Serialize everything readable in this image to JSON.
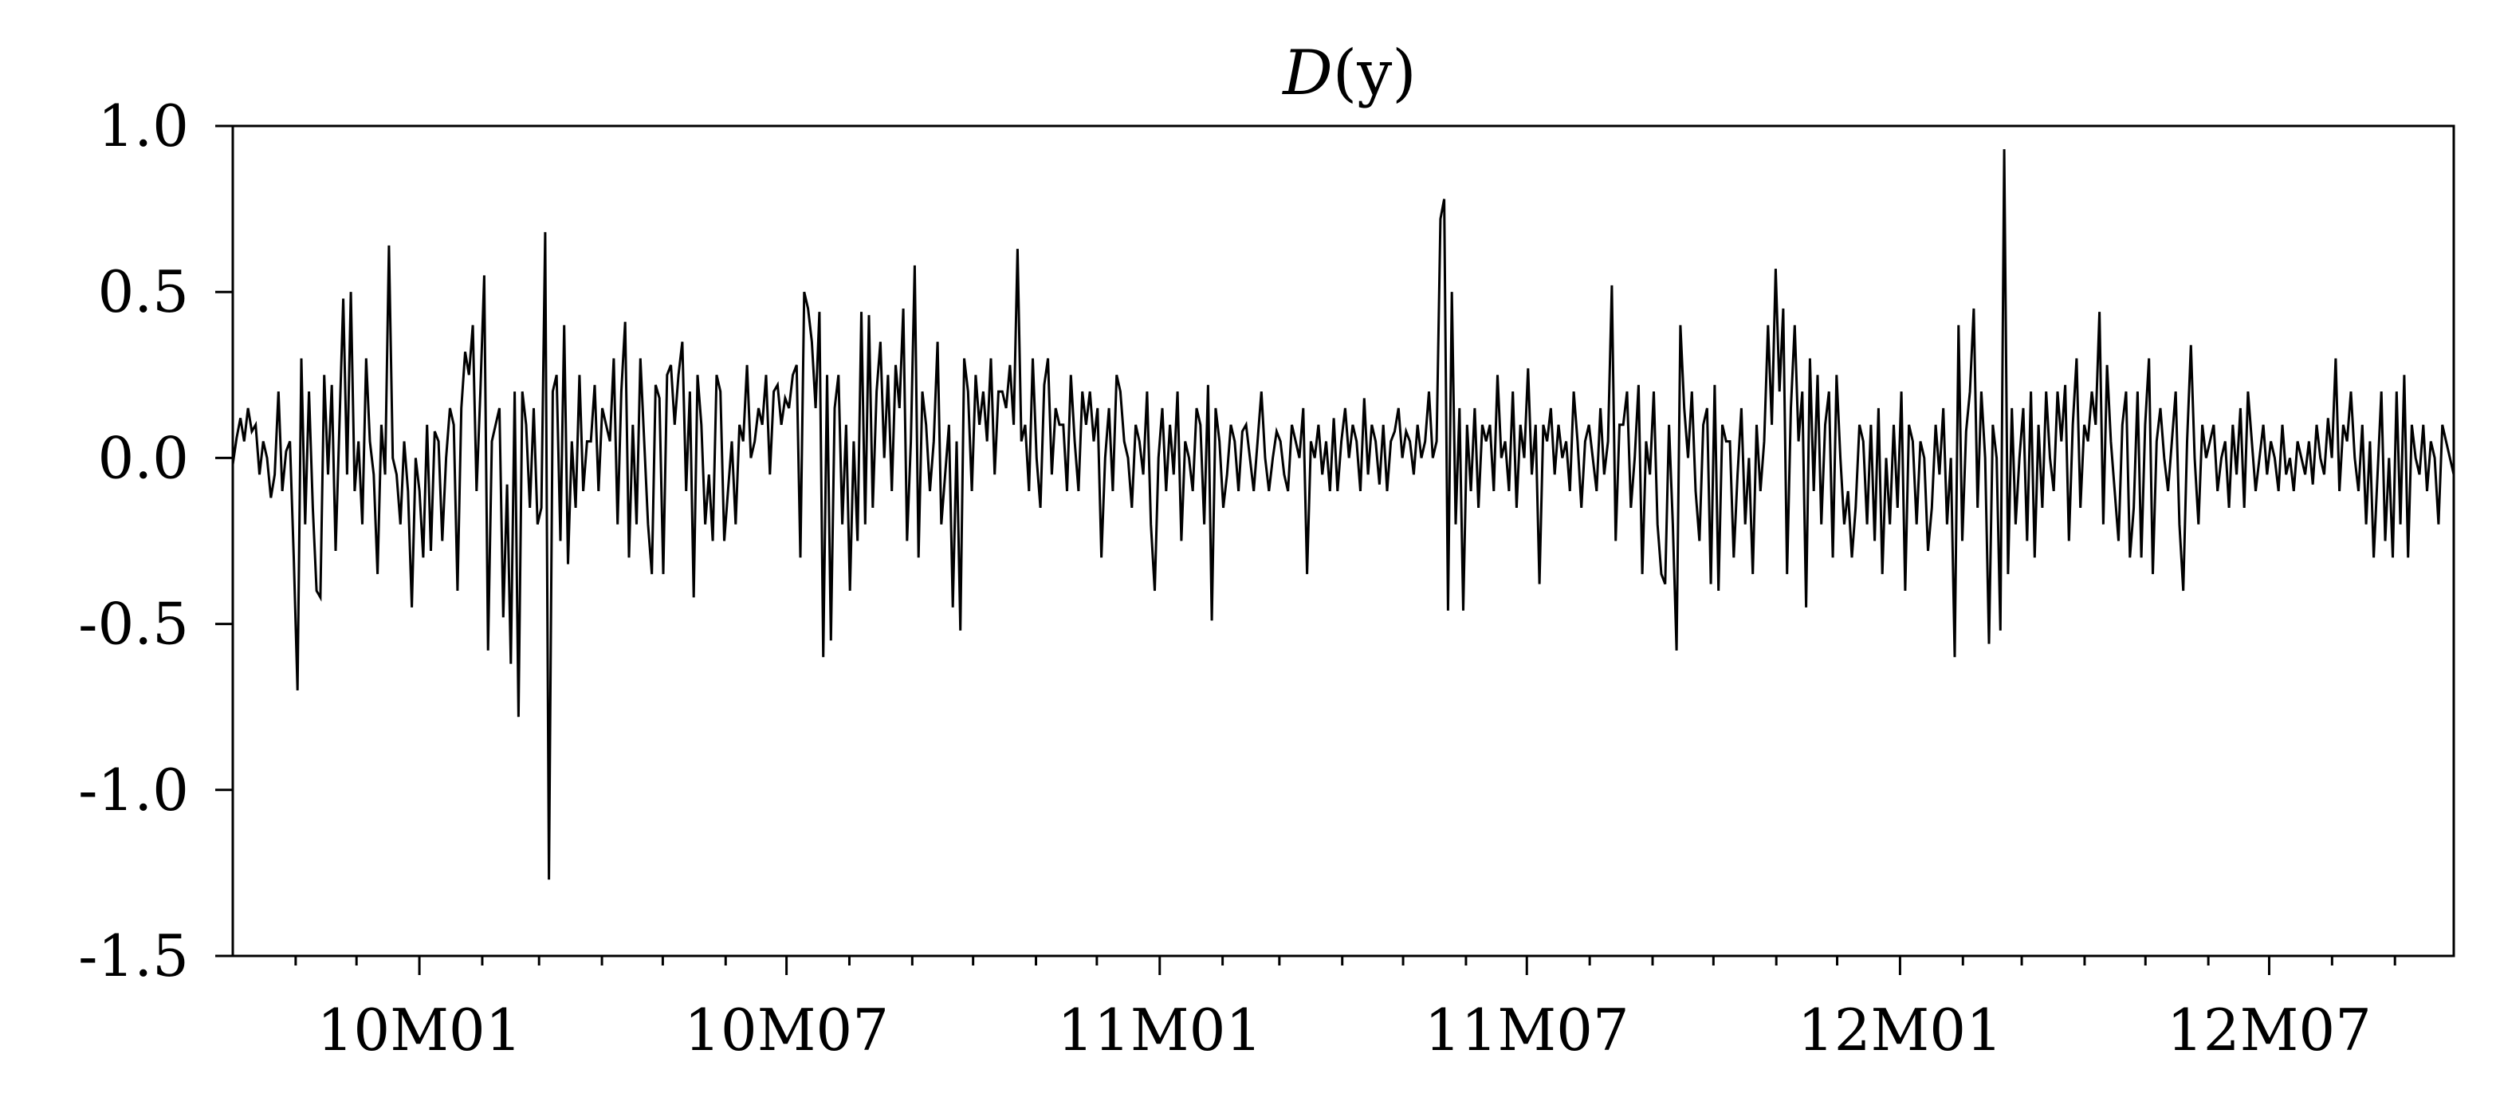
{
  "chart_data": {
    "type": "line",
    "title": "D(y)",
    "title_italic_part": "D",
    "title_rest": "(y)",
    "xlabel": "",
    "ylabel": "",
    "ylim": [
      -1.5,
      1.0
    ],
    "x_range": [
      "2009-10-01",
      "2012-09-30"
    ],
    "yticks": [
      1.0,
      0.5,
      0.0,
      -0.5,
      -1.0,
      -1.5
    ],
    "ytick_labels": [
      "1.0",
      "0.5",
      "0.0",
      "-0.5",
      "-1.0",
      "-1.5"
    ],
    "xtick_labels": [
      "10M01",
      "10M07",
      "11M01",
      "11M07",
      "12M01",
      "12M07"
    ],
    "xtick_dates": [
      "2010-01-01",
      "2010-07-01",
      "2011-01-01",
      "2011-07-01",
      "2012-01-01",
      "2012-07-01"
    ],
    "minor_tick_months": [
      "2009-11-01",
      "2009-12-01",
      "2010-02-01",
      "2010-03-01",
      "2010-04-01",
      "2010-05-01",
      "2010-06-01",
      "2010-08-01",
      "2010-09-01",
      "2010-10-01",
      "2010-11-01",
      "2010-12-01",
      "2011-02-01",
      "2011-03-01",
      "2011-04-01",
      "2011-05-01",
      "2011-06-01",
      "2011-08-01",
      "2011-09-01",
      "2011-10-01",
      "2011-11-01",
      "2011-12-01",
      "2012-02-01",
      "2012-03-01",
      "2012-04-01",
      "2012-05-01",
      "2012-06-01",
      "2012-08-01",
      "2012-09-01"
    ],
    "grid": false,
    "line_color": "#000000",
    "series": [
      {
        "x_start": "2009-10-01",
        "x_end": "2012-09-30",
        "values": [
          -0.02,
          0.06,
          0.12,
          0.05,
          0.15,
          0.08,
          0.1,
          -0.05,
          0.05,
          0.0,
          -0.12,
          -0.05,
          0.2,
          -0.1,
          0.02,
          0.05,
          -0.3,
          -0.7,
          0.3,
          -0.2,
          0.2,
          -0.15,
          -0.4,
          -0.42,
          0.25,
          -0.05,
          0.22,
          -0.28,
          0.1,
          0.48,
          -0.05,
          0.5,
          -0.1,
          0.05,
          -0.2,
          0.3,
          0.05,
          -0.05,
          -0.35,
          0.1,
          -0.05,
          0.64,
          0.0,
          -0.05,
          -0.2,
          0.05,
          -0.1,
          -0.45,
          0.0,
          -0.1,
          -0.3,
          0.1,
          -0.28,
          0.08,
          0.05,
          -0.25,
          0.0,
          0.15,
          0.1,
          -0.4,
          0.15,
          0.32,
          0.25,
          0.4,
          -0.1,
          0.2,
          0.55,
          -0.58,
          0.05,
          0.1,
          0.15,
          -0.48,
          -0.08,
          -0.62,
          0.2,
          -0.78,
          0.2,
          0.1,
          -0.15,
          0.15,
          -0.2,
          -0.15,
          0.68,
          -1.27,
          0.2,
          0.25,
          -0.25,
          0.4,
          -0.32,
          0.05,
          -0.15,
          0.25,
          -0.1,
          0.05,
          0.05,
          0.22,
          -0.1,
          0.15,
          0.1,
          0.05,
          0.3,
          -0.2,
          0.2,
          0.41,
          -0.3,
          0.1,
          -0.2,
          0.3,
          0.05,
          -0.2,
          -0.35,
          0.22,
          0.18,
          -0.35,
          0.25,
          0.28,
          0.1,
          0.25,
          0.35,
          -0.1,
          0.2,
          -0.42,
          0.25,
          0.1,
          -0.2,
          -0.05,
          -0.25,
          0.25,
          0.2,
          -0.25,
          -0.1,
          0.05,
          -0.2,
          0.1,
          0.05,
          0.28,
          0.0,
          0.05,
          0.15,
          0.1,
          0.25,
          -0.05,
          0.2,
          0.22,
          0.1,
          0.18,
          0.15,
          0.25,
          0.28,
          -0.3,
          0.5,
          0.45,
          0.35,
          0.15,
          0.44,
          -0.6,
          0.25,
          -0.55,
          0.15,
          0.25,
          -0.2,
          0.1,
          -0.4,
          0.05,
          -0.25,
          0.44,
          -0.2,
          0.43,
          -0.15,
          0.2,
          0.35,
          0.0,
          0.25,
          -0.1,
          0.28,
          0.15,
          0.45,
          -0.25,
          0.05,
          0.58,
          -0.3,
          0.2,
          0.1,
          -0.1,
          0.05,
          0.35,
          -0.2,
          -0.05,
          0.1,
          -0.45,
          0.05,
          -0.52,
          0.3,
          0.2,
          -0.1,
          0.25,
          0.1,
          0.2,
          0.05,
          0.3,
          -0.05,
          0.2,
          0.2,
          0.15,
          0.28,
          0.1,
          0.63,
          0.05,
          0.1,
          -0.1,
          0.3,
          0.0,
          -0.15,
          0.22,
          0.3,
          -0.05,
          0.15,
          0.1,
          0.1,
          -0.1,
          0.25,
          0.05,
          -0.1,
          0.2,
          0.1,
          0.2,
          0.05,
          0.15,
          -0.3,
          0.0,
          0.15,
          -0.1,
          0.25,
          0.2,
          0.05,
          0.0,
          -0.15,
          0.1,
          0.05,
          -0.05,
          0.2,
          -0.2,
          -0.4,
          0.0,
          0.15,
          -0.1,
          0.1,
          -0.05,
          0.2,
          -0.25,
          0.05,
          0.0,
          -0.1,
          0.15,
          0.1,
          -0.2,
          0.22,
          -0.49,
          0.15,
          0.05,
          -0.15,
          -0.05,
          0.1,
          0.05,
          -0.1,
          0.08,
          0.1,
          0.0,
          -0.1,
          0.05,
          0.2,
          0.0,
          -0.1,
          0.0,
          0.08,
          0.05,
          -0.05,
          -0.1,
          0.1,
          0.05,
          0.0,
          0.15,
          -0.35,
          0.05,
          0.0,
          0.1,
          -0.05,
          0.05,
          -0.1,
          0.12,
          -0.1,
          0.05,
          0.15,
          0.0,
          0.1,
          0.05,
          -0.1,
          0.18,
          -0.05,
          0.1,
          0.05,
          -0.08,
          0.1,
          -0.1,
          0.05,
          0.08,
          0.15,
          0.0,
          0.08,
          0.05,
          -0.05,
          0.1,
          0.0,
          0.05,
          0.2,
          0.0,
          0.05,
          0.72,
          0.78,
          -0.46,
          0.5,
          -0.2,
          0.15,
          -0.46,
          0.1,
          -0.1,
          0.15,
          -0.15,
          0.1,
          0.05,
          0.1,
          -0.1,
          0.25,
          0.0,
          0.05,
          -0.1,
          0.2,
          -0.15,
          0.1,
          0.0,
          0.27,
          -0.05,
          0.1,
          -0.38,
          0.1,
          0.05,
          0.15,
          -0.05,
          0.1,
          0.0,
          0.05,
          -0.1,
          0.2,
          0.05,
          -0.15,
          0.05,
          0.1,
          0.0,
          -0.1,
          0.15,
          -0.05,
          0.05,
          0.52,
          -0.25,
          0.1,
          0.1,
          0.2,
          -0.15,
          0.0,
          0.22,
          -0.35,
          0.05,
          -0.05,
          0.2,
          -0.2,
          -0.35,
          -0.38,
          0.1,
          -0.2,
          -0.58,
          0.4,
          0.15,
          0.0,
          0.2,
          -0.1,
          -0.25,
          0.1,
          0.15,
          -0.38,
          0.22,
          -0.4,
          0.1,
          0.05,
          0.05,
          -0.3,
          -0.05,
          0.15,
          -0.2,
          0.0,
          -0.35,
          0.1,
          -0.1,
          0.05,
          0.4,
          0.1,
          0.57,
          0.2,
          0.45,
          -0.35,
          0.15,
          0.4,
          0.05,
          0.2,
          -0.45,
          0.3,
          -0.1,
          0.25,
          -0.2,
          0.1,
          0.2,
          -0.3,
          0.25,
          0.0,
          -0.2,
          -0.1,
          -0.3,
          -0.15,
          0.1,
          0.05,
          -0.2,
          0.1,
          -0.25,
          0.15,
          -0.35,
          0.0,
          -0.2,
          0.1,
          -0.15,
          0.2,
          -0.4,
          0.1,
          0.05,
          -0.2,
          0.05,
          0.0,
          -0.28,
          -0.15,
          0.1,
          -0.05,
          0.15,
          -0.2,
          0.0,
          -0.6,
          0.4,
          -0.25,
          0.08,
          0.2,
          0.45,
          -0.15,
          0.2,
          0.0,
          -0.56,
          0.1,
          0.0,
          -0.52,
          0.93,
          -0.35,
          0.15,
          -0.2,
          0.0,
          0.15,
          -0.25,
          0.2,
          -0.3,
          0.1,
          -0.15,
          0.2,
          0.0,
          -0.1,
          0.2,
          0.05,
          0.22,
          -0.25,
          0.1,
          0.3,
          -0.15,
          0.1,
          0.05,
          0.2,
          0.1,
          0.44,
          -0.2,
          0.28,
          0.05,
          -0.1,
          -0.25,
          0.1,
          0.2,
          -0.3,
          -0.15,
          0.2,
          -0.3,
          0.1,
          0.3,
          -0.35,
          0.05,
          0.15,
          0.0,
          -0.1,
          0.05,
          0.2,
          -0.2,
          -0.4,
          0.05,
          0.34,
          0.0,
          -0.2,
          0.1,
          0.0,
          0.05,
          0.1,
          -0.1,
          0.0,
          0.05,
          -0.15,
          0.1,
          -0.05,
          0.15,
          -0.15,
          0.2,
          0.05,
          -0.1,
          0.0,
          0.1,
          -0.05,
          0.05,
          0.0,
          -0.1,
          0.1,
          -0.05,
          0.0,
          -0.1,
          0.05,
          0.0,
          -0.05,
          0.05,
          -0.08,
          0.1,
          0.0,
          -0.05,
          0.12,
          0.0,
          0.3,
          -0.1,
          0.1,
          0.05,
          0.2,
          0.0,
          -0.1,
          0.1,
          -0.2,
          0.05,
          -0.3,
          -0.05,
          0.2,
          -0.25,
          0.0,
          -0.3,
          0.2,
          -0.2,
          0.25,
          -0.3,
          0.1,
          0.0,
          -0.05,
          0.1,
          -0.1,
          0.05,
          0.0,
          -0.2,
          0.1,
          0.05,
          0.0,
          -0.05
        ]
      }
    ]
  }
}
